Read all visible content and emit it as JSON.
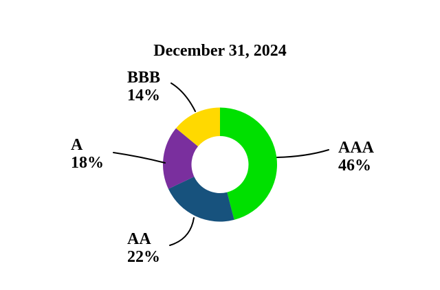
{
  "title": "December 31, 2024",
  "chart_data": {
    "type": "pie",
    "subtype": "donut",
    "title": "December 31, 2024",
    "labels": [
      "AAA",
      "AA",
      "A",
      "BBB"
    ],
    "values": [
      46,
      22,
      18,
      14
    ],
    "display_values": [
      "46%",
      "22%",
      "18%",
      "14%"
    ],
    "colors": [
      "#00E000",
      "#17527D",
      "#7A2F9E",
      "#FFD900"
    ],
    "start_angle_deg": 0,
    "direction": "clockwise",
    "inner_radius_ratio": 0.5,
    "background_color": "#ffffff",
    "text_color": "#000000",
    "leader_line_color": "#000000",
    "legend_position": "none",
    "grid": false
  }
}
